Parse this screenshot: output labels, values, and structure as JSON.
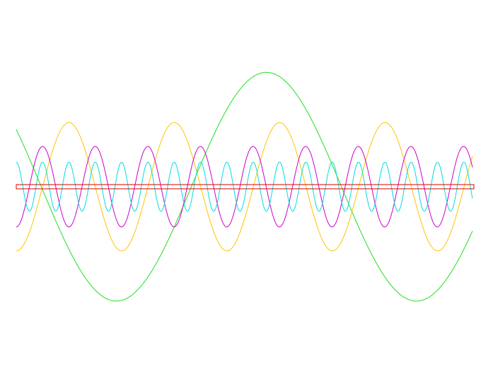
{
  "chart_data": {
    "type": "line",
    "title": "",
    "xlabel": "",
    "ylabel": "",
    "grid": false,
    "legend": "none",
    "xlim": [
      0,
      1
    ],
    "ylim": [
      -1,
      1
    ],
    "baseline_band": {
      "y": [
        -0.018,
        0.018
      ],
      "color": "#dd0000"
    },
    "series": [
      {
        "color": "#22dd22",
        "amplitude": 0.98,
        "cycles": 1.52,
        "phase_deg": 150,
        "offset": 0.0
      },
      {
        "color": "#ffc400",
        "amplitude": 0.55,
        "cycles": 4.33,
        "phase_deg": -90,
        "offset": 0.0
      },
      {
        "color": "#cc00cc",
        "amplitude": 0.345,
        "cycles": 8.67,
        "phase_deg": -90,
        "offset": 0.0
      },
      {
        "color": "#00dddd",
        "amplitude": 0.21,
        "cycles": 17.33,
        "phase_deg": 90,
        "offset": 0.0
      }
    ]
  }
}
